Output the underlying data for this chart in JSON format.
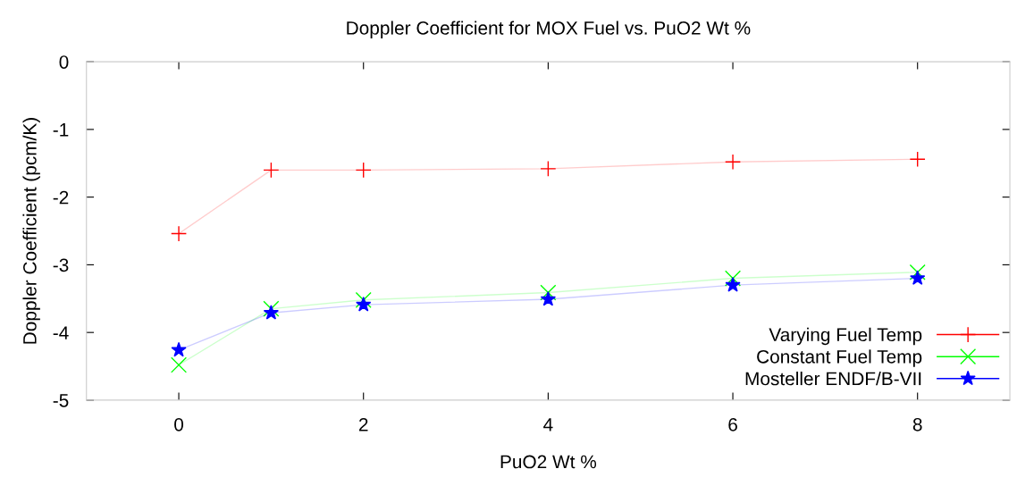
{
  "chart_data": {
    "type": "line",
    "title": "Doppler Coefficient for MOX Fuel vs. PuO2 Wt %",
    "xlabel": "PuO2 Wt %",
    "ylabel": "Doppler Coefficient (pcm/K)",
    "x": [
      0,
      1,
      2,
      4,
      6,
      8
    ],
    "series": [
      {
        "name": "Varying Fuel Temp",
        "color": "#ff0000",
        "marker": "cross",
        "values": [
          -2.54,
          -1.6,
          -1.6,
          -1.58,
          -1.48,
          -1.44
        ]
      },
      {
        "name": "Constant Fuel Temp",
        "color": "#00ff00",
        "marker": "x",
        "values": [
          -4.48,
          -3.65,
          -3.52,
          -3.41,
          -3.2,
          -3.11
        ]
      },
      {
        "name": "Mosteller ENDF/B-VII",
        "color": "#0000ff",
        "marker": "star",
        "values": [
          -4.26,
          -3.71,
          -3.59,
          -3.51,
          -3.3,
          -3.2
        ]
      }
    ],
    "xlim": [
      -1,
      9
    ],
    "xticks": [
      0,
      2,
      4,
      6,
      8
    ],
    "ylim": [
      -5,
      0
    ],
    "yticks": [
      -5,
      -4,
      -3,
      -2,
      -1,
      0
    ],
    "grid": false,
    "legend": "bottom right"
  }
}
